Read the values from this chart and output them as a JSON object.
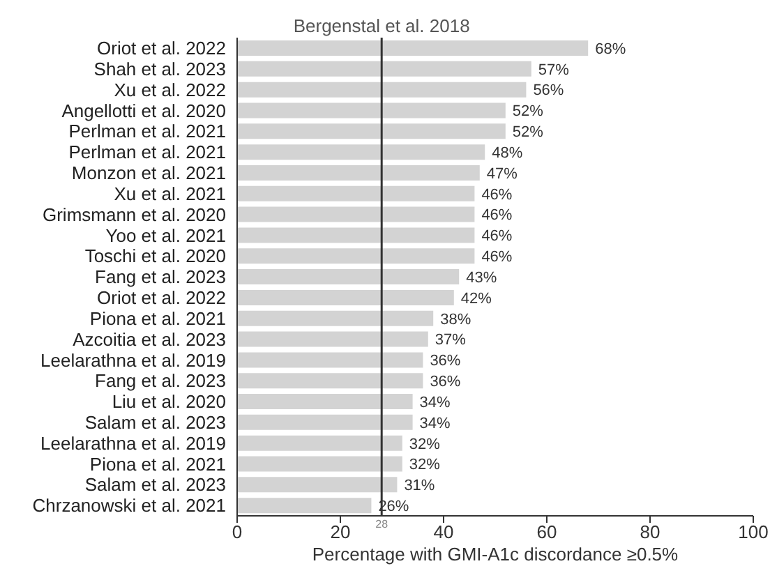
{
  "chart_data": {
    "type": "bar",
    "orientation": "horizontal",
    "xlabel": "Percentage with GMI-A1c discordance ≥0.5%",
    "categories": [
      "Oriot et al. 2022",
      "Shah et al. 2023",
      "Xu et al. 2022",
      "Angellotti et al. 2020",
      "Perlman et al. 2021",
      "Perlman et al. 2021",
      "Monzon et al. 2021",
      "Xu et al. 2021",
      "Grimsmann et al. 2020",
      "Yoo et al. 2021",
      "Toschi et al. 2020",
      "Fang et al. 2023",
      "Oriot et al. 2022",
      "Piona et al. 2021",
      "Azcoitia et al. 2023",
      "Leelarathna et al. 2019",
      "Fang et al. 2023",
      "Liu et al. 2020",
      "Salam et al. 2023",
      "Leelarathna et al. 2019",
      "Piona et al. 2021",
      "Salam et al. 2023",
      "Chrzanowski et al. 2021"
    ],
    "values": [
      68,
      57,
      56,
      52,
      52,
      48,
      47,
      46,
      46,
      46,
      46,
      43,
      42,
      38,
      37,
      36,
      36,
      34,
      34,
      32,
      32,
      31,
      26
    ],
    "value_labels": [
      "68%",
      "57%",
      "56%",
      "52%",
      "52%",
      "48%",
      "47%",
      "46%",
      "46%",
      "46%",
      "46%",
      "43%",
      "42%",
      "38%",
      "37%",
      "36%",
      "36%",
      "34%",
      "34%",
      "32%",
      "32%",
      "31%",
      "26%"
    ],
    "color": "#d3d3d3",
    "xlim": [
      0,
      100
    ],
    "xticks": [
      0,
      20,
      40,
      60,
      80,
      100
    ],
    "ref_lines": [
      {
        "axis": "x",
        "value": 28,
        "label": "28",
        "color": "#333333"
      }
    ],
    "annotations": [
      "Bergenstal et al. 2018"
    ],
    "grid": false,
    "legend": false
  }
}
